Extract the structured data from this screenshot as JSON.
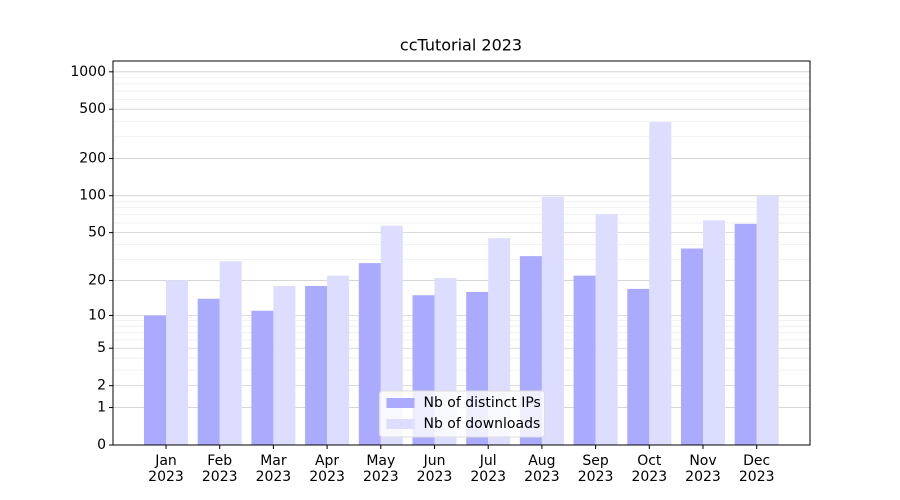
{
  "chart_data": {
    "type": "bar",
    "title": "ccTutorial 2023",
    "categories": [
      [
        "Jan",
        "2023"
      ],
      [
        "Feb",
        "2023"
      ],
      [
        "Mar",
        "2023"
      ],
      [
        "Apr",
        "2023"
      ],
      [
        "May",
        "2023"
      ],
      [
        "Jun",
        "2023"
      ],
      [
        "Jul",
        "2023"
      ],
      [
        "Aug",
        "2023"
      ],
      [
        "Sep",
        "2023"
      ],
      [
        "Oct",
        "2023"
      ],
      [
        "Nov",
        "2023"
      ],
      [
        "Dec",
        "2023"
      ]
    ],
    "series": [
      {
        "name": "Nb of distinct IPs",
        "color": "#aaaaff",
        "values": [
          10,
          14,
          11,
          18,
          28,
          15,
          16,
          32,
          22,
          17,
          37,
          59
        ]
      },
      {
        "name": "Nb of downloads",
        "color": "#ddddff",
        "values": [
          20,
          29,
          18,
          22,
          57,
          21,
          45,
          98,
          71,
          394,
          63,
          100
        ]
      }
    ],
    "yscale": "log1p",
    "ylim": [
      0,
      1222
    ],
    "yticks": [
      0,
      1,
      2,
      5,
      10,
      20,
      50,
      100,
      200,
      500,
      1000
    ],
    "minor_yticks": [
      3,
      4,
      6,
      7,
      8,
      9,
      30,
      40,
      60,
      70,
      80,
      90,
      300,
      400,
      600,
      700,
      800,
      900
    ],
    "grid": true,
    "legend": "lower center"
  }
}
